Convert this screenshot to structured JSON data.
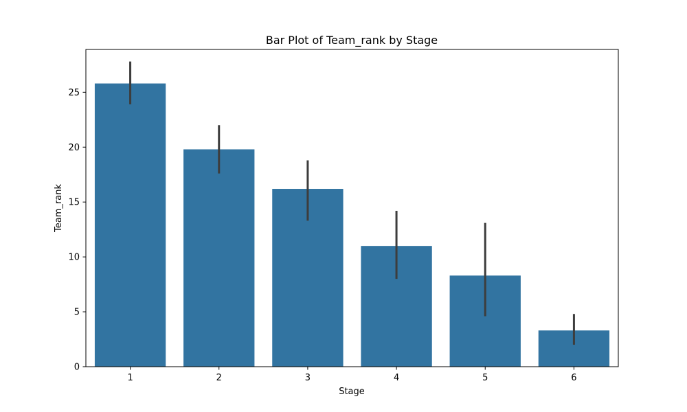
{
  "chart_data": {
    "type": "bar",
    "title": "Bar Plot of Team_rank by Stage",
    "xlabel": "Stage",
    "ylabel": "Team_rank",
    "categories": [
      "1",
      "2",
      "3",
      "4",
      "5",
      "6"
    ],
    "values": [
      25.8,
      19.8,
      16.2,
      11.0,
      8.3,
      3.3
    ],
    "error_low": [
      23.9,
      17.6,
      13.3,
      8.0,
      4.6,
      2.0
    ],
    "error_high": [
      27.8,
      22.0,
      18.8,
      14.2,
      13.1,
      4.8
    ],
    "ylim": [
      0,
      28.9
    ],
    "yticks": [
      0,
      5,
      10,
      15,
      20,
      25
    ],
    "bar_color": "#3274a1",
    "error_color": "#3d3d3d",
    "grid": false,
    "legend": "none"
  }
}
